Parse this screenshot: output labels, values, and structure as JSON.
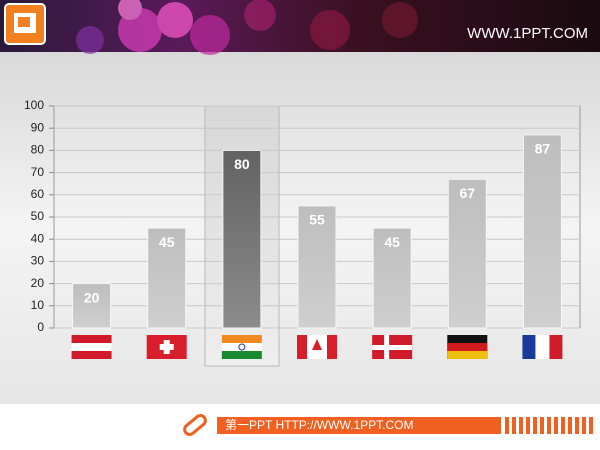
{
  "header": {
    "site": "WWW.1PPT.COM"
  },
  "footer": {
    "text": "第一PPT HTTP://WWW.1PPT.COM"
  },
  "chart_data": {
    "type": "bar",
    "categories": [
      null,
      null,
      null,
      null,
      null,
      null,
      null
    ],
    "values": [
      20,
      45,
      80,
      55,
      45,
      67,
      87
    ],
    "colors": [
      "#a8a8a8",
      "#a8a8a8",
      "#2e2e2e",
      "#a8a8a8",
      "#a8a8a8",
      "#a8a8a8",
      "#a8a8a8"
    ],
    "ylim": [
      0,
      100
    ],
    "yticks": [
      0,
      10,
      20,
      30,
      40,
      50,
      60,
      70,
      80,
      90,
      100
    ],
    "grid": true
  }
}
